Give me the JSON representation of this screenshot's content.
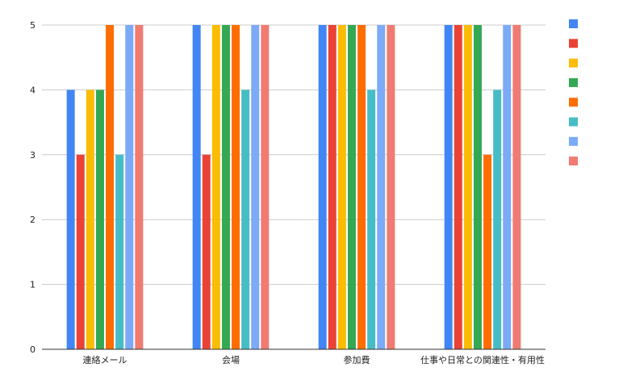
{
  "chart_data": {
    "type": "bar",
    "title": "",
    "xlabel": "",
    "ylabel": "",
    "categories": [
      "連絡メール",
      "会場",
      "参加費",
      "仕事や日常との関連性・有用性"
    ],
    "ylim": [
      0,
      5
    ],
    "yticks": [
      0,
      1,
      2,
      3,
      4,
      5
    ],
    "grid": true,
    "legend_position": "right",
    "series": [
      {
        "color": "#4285f4",
        "values": [
          4,
          5,
          5,
          5
        ]
      },
      {
        "color": "#ea4335",
        "values": [
          3,
          3,
          5,
          5
        ]
      },
      {
        "color": "#fbbc04",
        "values": [
          4,
          5,
          5,
          5
        ]
      },
      {
        "color": "#34a853",
        "values": [
          4,
          5,
          5,
          5
        ]
      },
      {
        "color": "#ff6d01",
        "values": [
          5,
          5,
          5,
          3
        ]
      },
      {
        "color": "#46bdc6",
        "values": [
          3,
          4,
          4,
          4
        ]
      },
      {
        "color": "#7baaf7",
        "values": [
          5,
          5,
          5,
          5
        ]
      },
      {
        "color": "#f07b72",
        "values": [
          5,
          5,
          5,
          5
        ]
      }
    ]
  }
}
